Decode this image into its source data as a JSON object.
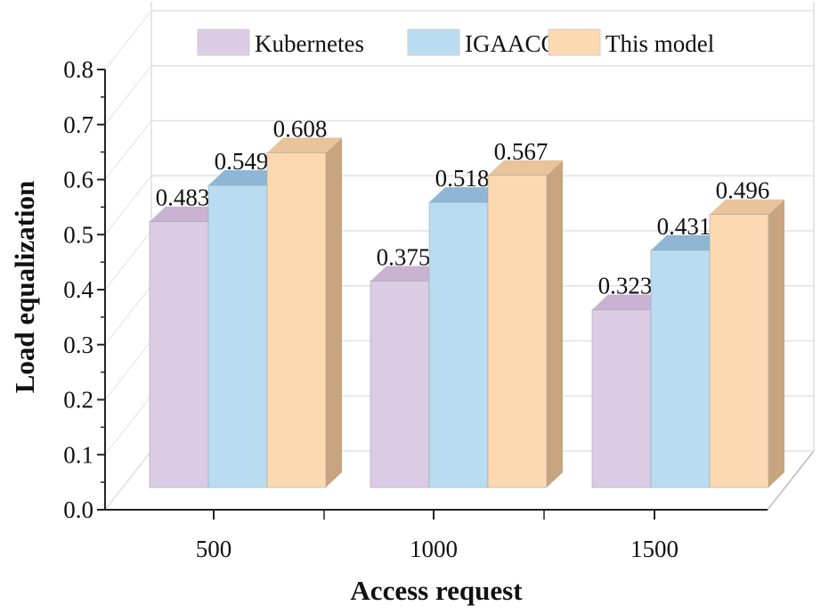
{
  "chart_data": {
    "type": "bar",
    "style": "3d-clustered",
    "categories": [
      "500",
      "1000",
      "1500"
    ],
    "series": [
      {
        "name": "Kubernetes",
        "values": [
          0.483,
          0.375,
          0.323
        ],
        "color": "#dccbe4"
      },
      {
        "name": "IGAACO",
        "values": [
          0.549,
          0.518,
          0.431
        ],
        "color": "#b9dcf1"
      },
      {
        "name": "This model",
        "values": [
          0.608,
          0.567,
          0.496
        ],
        "color": "#fdd9b1"
      }
    ],
    "data_labels": [
      [
        "0.483",
        "0.375",
        "0.323"
      ],
      [
        "0.549",
        "0.518",
        "0.431"
      ],
      [
        "0.608",
        "0.567",
        "0.496"
      ]
    ],
    "xlabel": "Access request",
    "ylabel": "Load equalization",
    "ylim": [
      0,
      0.8
    ],
    "yticks": [
      "0.0",
      "0.1",
      "0.2",
      "0.3",
      "0.4",
      "0.5",
      "0.6",
      "0.7",
      "0.8"
    ],
    "grid": true,
    "legend": "top"
  }
}
